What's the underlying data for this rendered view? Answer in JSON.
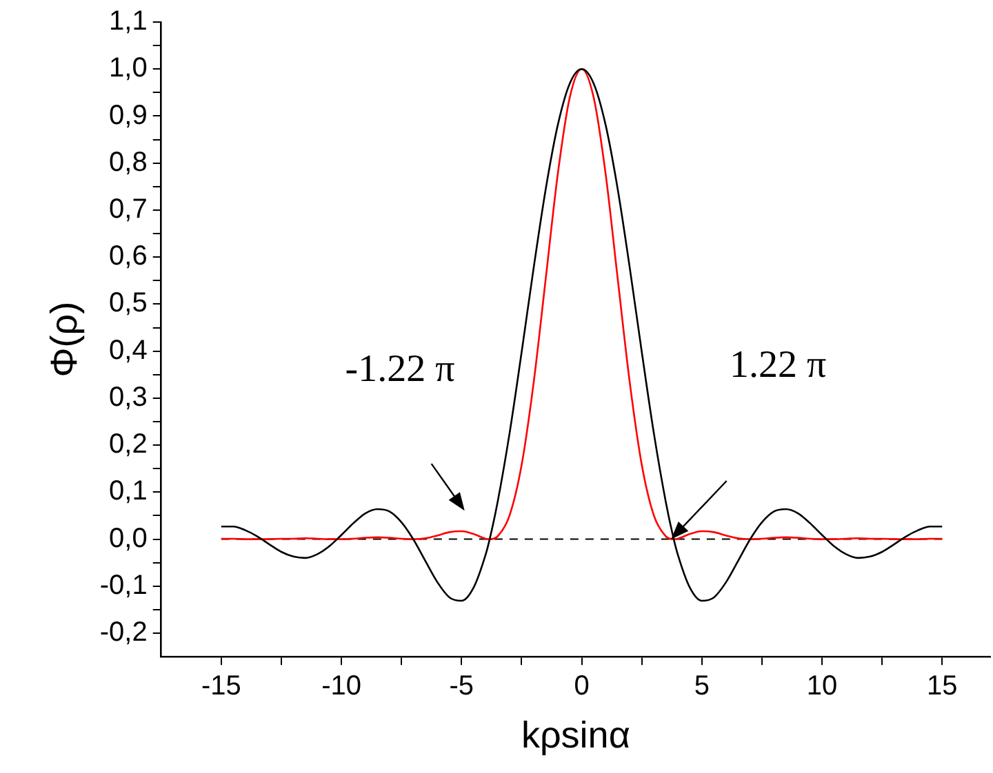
{
  "chart_data": {
    "type": "line",
    "xlabel": "kρsinα",
    "ylabel": "Φ(ρ)",
    "x": [
      -15,
      -14.5,
      -14,
      -13.5,
      -13,
      -12.5,
      -12,
      -11.5,
      -11,
      -10.5,
      -10,
      -9.5,
      -9,
      -8.5,
      -8,
      -7.5,
      -7,
      -6.5,
      -6,
      -5.5,
      -5,
      -4.5,
      -4,
      -3.83,
      -3.5,
      -3,
      -2.5,
      -2,
      -1.5,
      -1,
      -0.5,
      0,
      0.5,
      1,
      1.5,
      2,
      2.5,
      3,
      3.5,
      3.83,
      4,
      4.5,
      5,
      5.5,
      6,
      6.5,
      7,
      7.5,
      8,
      8.5,
      9,
      9.5,
      10,
      10.5,
      11,
      11.5,
      12,
      12.5,
      13,
      13.5,
      14,
      14.5,
      15
    ],
    "series": [
      {
        "color": "#000000",
        "values": [
          0.027,
          0.027,
          0.019,
          0.006,
          -0.011,
          -0.027,
          -0.037,
          -0.04,
          -0.032,
          -0.015,
          0.009,
          0.034,
          0.055,
          0.064,
          0.059,
          0.036,
          -0.001,
          -0.047,
          -0.092,
          -0.124,
          -0.131,
          -0.103,
          -0.033,
          0,
          0.079,
          0.226,
          0.398,
          0.577,
          0.744,
          0.88,
          0.969,
          1,
          0.969,
          0.88,
          0.744,
          0.577,
          0.398,
          0.226,
          0.079,
          0,
          -0.033,
          -0.103,
          -0.131,
          -0.124,
          -0.092,
          -0.047,
          -0.001,
          0.036,
          0.059,
          0.064,
          0.055,
          0.034,
          0.009,
          -0.015,
          -0.032,
          -0.04,
          -0.037,
          -0.027,
          -0.011,
          0.006,
          0.019,
          0.027,
          0.027
        ]
      },
      {
        "color": "#ff0000",
        "values": [
          0.001,
          0.001,
          0,
          0,
          0,
          0.001,
          0.001,
          0.002,
          0.001,
          0,
          0,
          0.001,
          0.003,
          0.004,
          0.003,
          0.001,
          0,
          0.002,
          0.008,
          0.015,
          0.017,
          0.011,
          0.001,
          0,
          0.006,
          0.051,
          0.158,
          0.333,
          0.553,
          0.775,
          0.939,
          1,
          0.939,
          0.775,
          0.553,
          0.333,
          0.158,
          0.051,
          0.006,
          0,
          0.001,
          0.011,
          0.017,
          0.015,
          0.008,
          0.002,
          0,
          0.001,
          0.003,
          0.004,
          0.003,
          0.001,
          0,
          0,
          0.001,
          0.002,
          0.001,
          0.001,
          0,
          0,
          0,
          0.001,
          0.001
        ]
      }
    ],
    "xlim": [
      -17.5,
      17
    ],
    "xticks": [
      -15,
      {
        "value": -12.5,
        "label": null
      },
      -10,
      {
        "value": -7.5,
        "label": null
      },
      -5,
      {
        "value": -2.5,
        "label": null
      },
      0,
      {
        "value": 2.5,
        "label": null
      },
      5,
      {
        "value": 7.5,
        "label": null
      },
      10,
      {
        "value": 12.5,
        "label": null
      },
      15
    ],
    "ylim": [
      -0.25,
      1.1
    ],
    "yticks": [
      {
        "value": -0.2,
        "label": "-0,2"
      },
      {
        "value": -0.15,
        "label": null
      },
      {
        "value": -0.1,
        "label": "-0,1"
      },
      {
        "value": -0.05,
        "label": null
      },
      {
        "value": 0,
        "label": "0,0"
      },
      {
        "value": 0.05,
        "label": null
      },
      {
        "value": 0.1,
        "label": "0,1"
      },
      {
        "value": 0.15,
        "label": null
      },
      {
        "value": 0.2,
        "label": "0,2"
      },
      {
        "value": 0.25,
        "label": null
      },
      {
        "value": 0.3,
        "label": "0,3"
      },
      {
        "value": 0.35,
        "label": null
      },
      {
        "value": 0.4,
        "label": "0,4"
      },
      {
        "value": 0.45,
        "label": null
      },
      {
        "value": 0.5,
        "label": "0,5"
      },
      {
        "value": 0.55,
        "label": null
      },
      {
        "value": 0.6,
        "label": "0,6"
      },
      {
        "value": 0.65,
        "label": null
      },
      {
        "value": 0.7,
        "label": "0,7"
      },
      {
        "value": 0.75,
        "label": null
      },
      {
        "value": 0.8,
        "label": "0,8"
      },
      {
        "value": 0.85,
        "label": null
      },
      {
        "value": 0.9,
        "label": "0,9"
      },
      {
        "value": 0.95,
        "label": null
      },
      {
        "value": 1.0,
        "label": "1,0"
      },
      {
        "value": 1.05,
        "label": null
      },
      {
        "value": 1.1,
        "label": "1,1"
      }
    ],
    "ref_lines": [
      {
        "axis": "y",
        "value": 0,
        "color": "#000000",
        "line_style": "dashed"
      }
    ],
    "annotations": [
      "-1.22 π",
      "1.22 π"
    ],
    "grid": false,
    "legend": false,
    "marker": "none",
    "line_style": "solid"
  }
}
